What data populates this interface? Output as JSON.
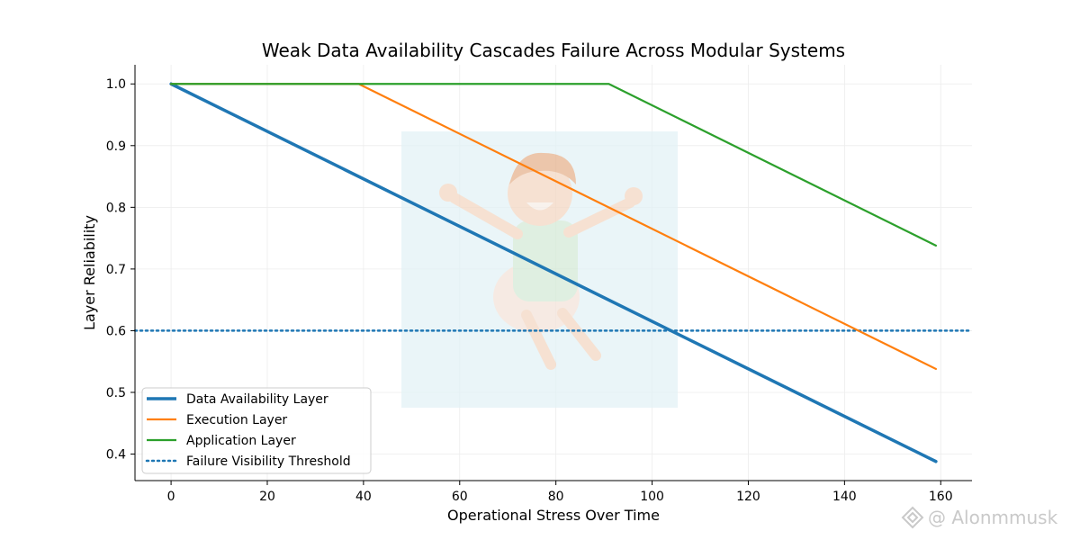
{
  "chart_data": {
    "type": "line",
    "title": "Weak Data Availability Cascades Failure Across Modular Systems",
    "xlabel": "Operational Stress Over Time",
    "ylabel": "Layer Reliability",
    "xlim": [
      -7.5,
      166.5
    ],
    "ylim": [
      0.357,
      1.031
    ],
    "xticks": [
      0,
      20,
      40,
      60,
      80,
      100,
      120,
      140,
      160
    ],
    "yticks": [
      0.4,
      0.5,
      0.6,
      0.7,
      0.8,
      0.9,
      1.0
    ],
    "xtick_labels": [
      "0",
      "20",
      "40",
      "60",
      "80",
      "100",
      "120",
      "140",
      "160"
    ],
    "ytick_labels": [
      "0.4",
      "0.5",
      "0.6",
      "0.7",
      "0.8",
      "0.9",
      "1.0"
    ],
    "grid": true,
    "legend_position": "lower-left",
    "series": [
      {
        "name": "Data Availability Layer",
        "color": "#1f77b4",
        "style": "solid",
        "x": [
          0,
          159
        ],
        "y": [
          1.0,
          0.388
        ]
      },
      {
        "name": "Execution Layer",
        "color": "#ff7f0e",
        "style": "solid",
        "x": [
          0,
          39,
          159
        ],
        "y": [
          1.0,
          1.0,
          0.538
        ]
      },
      {
        "name": "Application Layer",
        "color": "#2ca02c",
        "style": "solid",
        "x": [
          0,
          91,
          159
        ],
        "y": [
          1.0,
          1.0,
          0.738
        ]
      }
    ],
    "threshold": {
      "name": "Failure Visibility Threshold",
      "color": "#1f77b4",
      "style": "dotted",
      "y": 0.6
    }
  },
  "watermark": {
    "text": "@ Alonmmusk",
    "icon": "binance-diamond-icon"
  },
  "overlay_image": {
    "icon": "cheering-cartoon-boy-icon"
  }
}
